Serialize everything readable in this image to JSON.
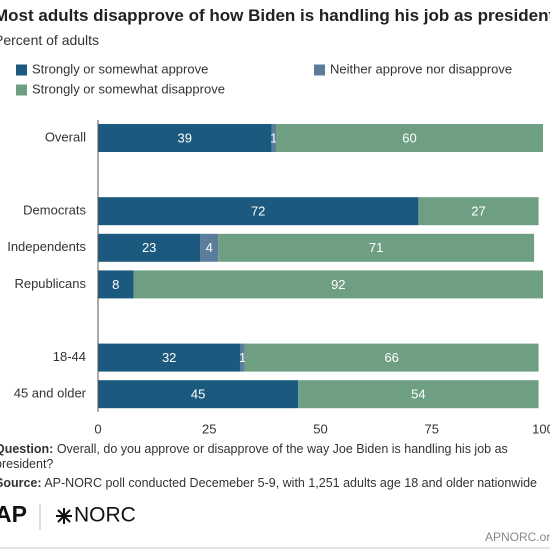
{
  "chart_data": {
    "type": "stacked-bar-horizontal",
    "title": "Most adults disapprove of how Biden is handling his job as president.",
    "subtitle": "Percent of adults",
    "categories": [
      "Overall",
      null,
      "Democrats",
      "Independents",
      "Republicans",
      null,
      "18-44",
      "45 and older"
    ],
    "series": [
      {
        "name": "Strongly or somewhat approve",
        "color": "#1b5a7e",
        "values": [
          39,
          null,
          72,
          23,
          8,
          null,
          32,
          45
        ]
      },
      {
        "name": "Neither approve nor disapprove",
        "color": "#5b7d9b",
        "values": [
          1,
          null,
          null,
          4,
          null,
          null,
          1,
          null
        ]
      },
      {
        "name": "Strongly or somewhat disapprove",
        "color": "#6e9f83",
        "values": [
          60,
          null,
          27,
          71,
          92,
          null,
          66,
          54
        ]
      }
    ],
    "xlim": [
      0,
      100
    ],
    "xticks": [
      0,
      25,
      50,
      75,
      100
    ],
    "grid": false,
    "notes": [
      {
        "label": "Question:",
        "text": "Overall, do you approve or disapprove of the way Joe Biden is handling his job as president?"
      },
      {
        "label": "Source:",
        "text": "AP-NORC poll conducted Decemeber 5-9, with 1,251 adults age 18 and older nationwide"
      }
    ],
    "logos": [
      "AP",
      "NORC"
    ],
    "website": "APNORC.org"
  }
}
